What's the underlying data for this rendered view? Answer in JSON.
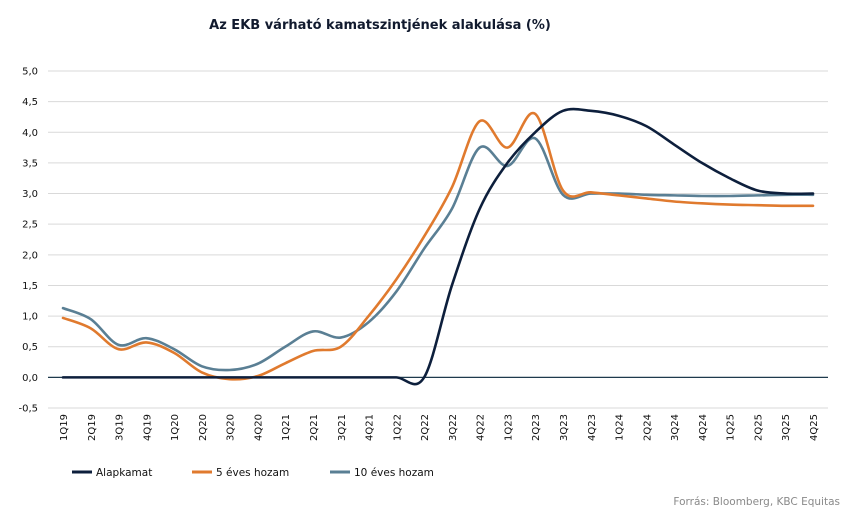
{
  "chart_data": {
    "type": "line",
    "title": "Az EKB várható kamatszintjének alakulása (%)",
    "source": "Forrás: Bloomberg, KBC Equitas",
    "xlabel": "",
    "ylabel": "",
    "ylim": [
      -0.5,
      5.0
    ],
    "yticks": [
      "-0,5",
      "0,0",
      "0,5",
      "1,0",
      "1,5",
      "2,0",
      "2,5",
      "3,0",
      "3,5",
      "4,0",
      "4,5",
      "5,0"
    ],
    "grid": true,
    "legend_position": "bottom-left",
    "categories": [
      "1Q19",
      "2Q19",
      "3Q19",
      "4Q19",
      "1Q20",
      "2Q20",
      "3Q20",
      "4Q20",
      "1Q21",
      "2Q21",
      "3Q21",
      "4Q21",
      "1Q22",
      "2Q22",
      "3Q22",
      "4Q22",
      "1Q23",
      "2Q23",
      "3Q23",
      "4Q23",
      "1Q24",
      "2Q24",
      "3Q24",
      "4Q24",
      "1Q25",
      "2Q25",
      "3Q25",
      "4Q25"
    ],
    "series": [
      {
        "name": "Alapkamat",
        "color": "#0d1f3c",
        "values": [
          0.0,
          0.0,
          0.0,
          0.0,
          0.0,
          0.0,
          0.0,
          0.0,
          0.0,
          0.0,
          0.0,
          0.0,
          0.0,
          0.0,
          1.5,
          2.75,
          3.5,
          4.0,
          4.35,
          4.35,
          4.27,
          4.1,
          3.8,
          3.5,
          3.25,
          3.05,
          3.0,
          3.0
        ]
      },
      {
        "name": "5 éves hozam",
        "color": "#e07a2e",
        "values": [
          0.97,
          0.8,
          0.46,
          0.57,
          0.4,
          0.08,
          -0.03,
          0.02,
          0.23,
          0.43,
          0.5,
          1.0,
          1.6,
          2.3,
          3.1,
          4.18,
          3.75,
          4.3,
          3.05,
          3.02,
          2.97,
          2.92,
          2.87,
          2.84,
          2.82,
          2.81,
          2.8,
          2.8
        ]
      },
      {
        "name": "10 éves hozam",
        "color": "#5a7f94",
        "values": [
          1.13,
          0.95,
          0.53,
          0.64,
          0.46,
          0.18,
          0.12,
          0.22,
          0.5,
          0.75,
          0.65,
          0.9,
          1.4,
          2.1,
          2.75,
          3.75,
          3.45,
          3.9,
          2.98,
          3.0,
          3.0,
          2.98,
          2.97,
          2.96,
          2.96,
          2.97,
          2.98,
          2.98
        ]
      }
    ]
  }
}
